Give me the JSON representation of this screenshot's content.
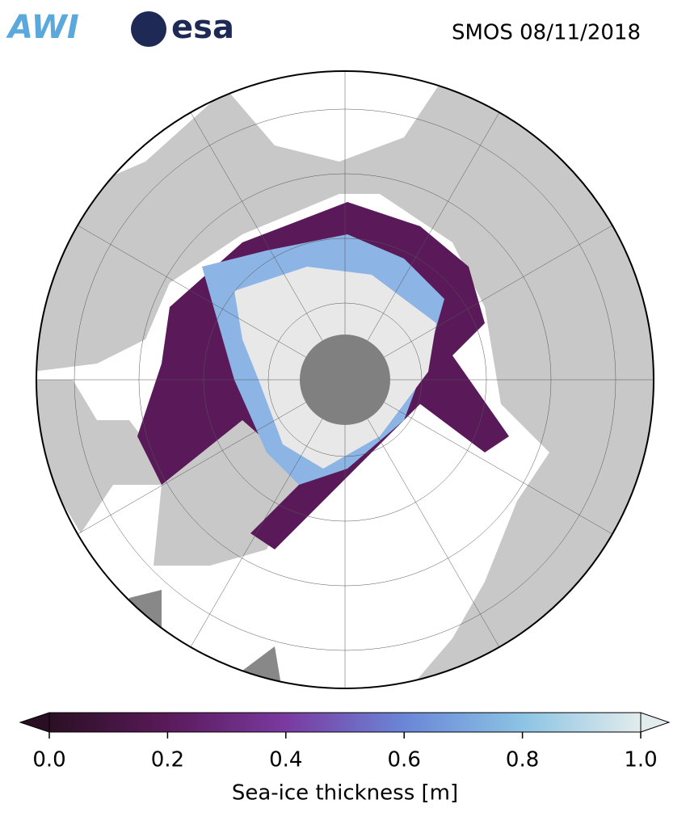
{
  "header": {
    "logos": [
      "AWI",
      "esa"
    ],
    "title": "SMOS 08/11/2018"
  },
  "colorbar": {
    "label": "Sea-ice thickness [m]",
    "lim": [
      0,
      1
    ],
    "ticks": [
      {
        "value": 0,
        "label": "0.0"
      },
      {
        "value": 0.2,
        "label": "0.2"
      },
      {
        "value": 0.4,
        "label": "0.4"
      },
      {
        "value": 0.6,
        "label": "0.6"
      },
      {
        "value": 0.8,
        "label": "0.8"
      },
      {
        "value": 1,
        "label": "1.0"
      }
    ]
  }
}
